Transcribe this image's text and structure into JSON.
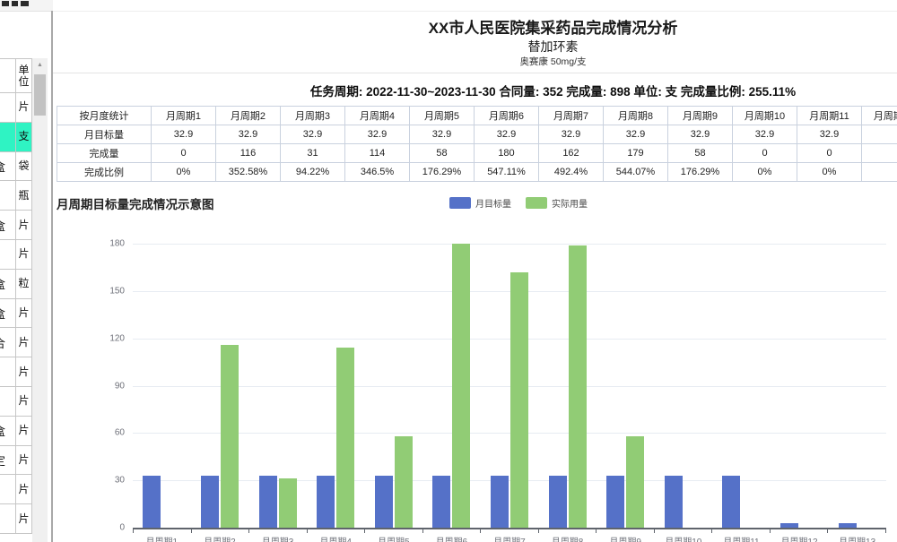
{
  "header": {
    "title": "XX市人民医院集采药品完成情况分析",
    "subtitle": "替加环素",
    "spec": "奥赛康 50mg/支"
  },
  "task_line": "任务周期:  2022-11-30~2023-11-30 合同量:  352 完成量: 898 单位:  支 完成量比例: 255.11%",
  "table": {
    "corner": "按月度统计",
    "row_labels": [
      "月目标量",
      "完成量",
      "完成比例"
    ],
    "columns": [
      {
        "label": "月周期1",
        "target": "32.9",
        "done": "0",
        "ratio": "0%"
      },
      {
        "label": "月周期2",
        "target": "32.9",
        "done": "116",
        "ratio": "352.58%"
      },
      {
        "label": "月周期3",
        "target": "32.9",
        "done": "31",
        "ratio": "94.22%"
      },
      {
        "label": "月周期4",
        "target": "32.9",
        "done": "114",
        "ratio": "346.5%"
      },
      {
        "label": "月周期5",
        "target": "32.9",
        "done": "58",
        "ratio": "176.29%"
      },
      {
        "label": "月周期6",
        "target": "32.9",
        "done": "180",
        "ratio": "547.11%"
      },
      {
        "label": "月周期7",
        "target": "32.9",
        "done": "162",
        "ratio": "492.4%"
      },
      {
        "label": "月周期8",
        "target": "32.9",
        "done": "179",
        "ratio": "544.07%"
      },
      {
        "label": "月周期9",
        "target": "32.9",
        "done": "58",
        "ratio": "176.29%"
      },
      {
        "label": "月周期10",
        "target": "32.9",
        "done": "0",
        "ratio": "0%"
      },
      {
        "label": "月周期11",
        "target": "32.9",
        "done": "0",
        "ratio": "0%"
      },
      {
        "label": "月周期12",
        "target": "",
        "done": "",
        "ratio": ""
      },
      {
        "label": "月周期13",
        "target": "",
        "done": "",
        "ratio": ""
      }
    ]
  },
  "chart": {
    "title": "月周期目标量完成情况示意图",
    "legend": [
      {
        "label": "月目标量",
        "color": "#5571c8"
      },
      {
        "label": "实际用量",
        "color": "#91cc75"
      }
    ]
  },
  "chart_data": {
    "type": "bar",
    "title": "月周期目标量完成情况示意图",
    "categories": [
      "月周期1",
      "月周期2",
      "月周期3",
      "月周期4",
      "月周期5",
      "月周期6",
      "月周期7",
      "月周期8",
      "月周期9",
      "月周期10",
      "月周期11",
      "月周期12",
      "月周期13"
    ],
    "series": [
      {
        "name": "月目标量",
        "color": "#5571c8",
        "values": [
          32.9,
          32.9,
          32.9,
          32.9,
          32.9,
          32.9,
          32.9,
          32.9,
          32.9,
          32.9,
          32.9,
          3,
          3
        ]
      },
      {
        "name": "实际用量",
        "color": "#91cc75",
        "values": [
          0,
          116,
          31,
          114,
          58,
          180,
          162,
          179,
          58,
          0,
          0,
          0,
          0
        ]
      }
    ],
    "xlabel": "",
    "ylabel": "",
    "ylim": [
      0,
      180
    ],
    "yticks": [
      0,
      30,
      60,
      90,
      120,
      150,
      180
    ],
    "grid": true,
    "legend_position": "top"
  },
  "sidebar": {
    "header_unit": "单位",
    "highlight_color": "#2ff3c3",
    "rows": [
      {
        "partial": "",
        "unit": "单位",
        "type": "header"
      },
      {
        "partial": "",
        "unit": "片"
      },
      {
        "partial": "",
        "unit": "支",
        "highlight": true
      },
      {
        "partial": "盒",
        "unit": "袋"
      },
      {
        "partial": "",
        "unit": "瓶"
      },
      {
        "partial": "盒",
        "unit": "片"
      },
      {
        "partial": "",
        "unit": "片"
      },
      {
        "partial": "盒",
        "unit": "粒"
      },
      {
        "partial": "盒",
        "unit": "片"
      },
      {
        "partial": "合",
        "unit": "片"
      },
      {
        "partial": "",
        "unit": "片"
      },
      {
        "partial": "",
        "unit": "片"
      },
      {
        "partial": "盒",
        "unit": "片"
      },
      {
        "partial": "定",
        "unit": "片"
      },
      {
        "partial": "",
        "unit": "片"
      },
      {
        "partial": "",
        "unit": "片"
      }
    ]
  },
  "scrollbar": {
    "up_arrow_icon": "▲"
  }
}
